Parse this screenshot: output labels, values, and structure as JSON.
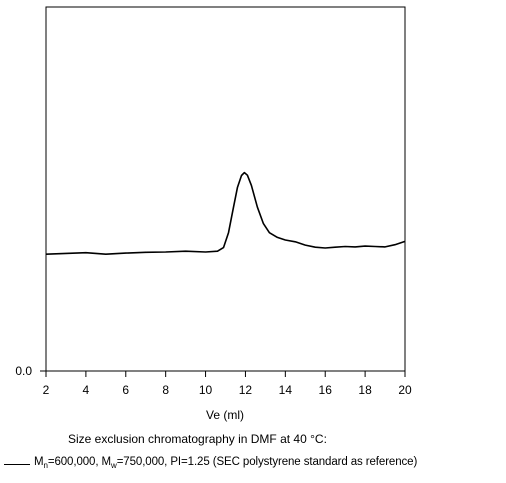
{
  "chart_data": {
    "type": "line",
    "title": "",
    "xlabel": "Ve (ml)",
    "ylabel": "",
    "xlim": [
      2,
      20
    ],
    "ylim": [
      0,
      1
    ],
    "x_ticks": [
      "2",
      "4",
      "6",
      "8",
      "10",
      "12",
      "14",
      "16",
      "18",
      "20"
    ],
    "y_ticks": [
      "0.0"
    ],
    "grid": false,
    "series": [
      {
        "color": "#000000",
        "points": [
          [
            2.0,
            0.321
          ],
          [
            3.0,
            0.323
          ],
          [
            4.0,
            0.325
          ],
          [
            5.0,
            0.321
          ],
          [
            6.0,
            0.324
          ],
          [
            7.0,
            0.326
          ],
          [
            8.0,
            0.327
          ],
          [
            9.0,
            0.329
          ],
          [
            10.0,
            0.327
          ],
          [
            10.6,
            0.329
          ],
          [
            10.9,
            0.339
          ],
          [
            11.15,
            0.38
          ],
          [
            11.4,
            0.45
          ],
          [
            11.6,
            0.505
          ],
          [
            11.8,
            0.537
          ],
          [
            11.95,
            0.545
          ],
          [
            12.1,
            0.538
          ],
          [
            12.3,
            0.51
          ],
          [
            12.6,
            0.45
          ],
          [
            12.9,
            0.405
          ],
          [
            13.2,
            0.38
          ],
          [
            13.6,
            0.367
          ],
          [
            14.0,
            0.36
          ],
          [
            14.5,
            0.355
          ],
          [
            15.0,
            0.346
          ],
          [
            15.5,
            0.34
          ],
          [
            16.0,
            0.338
          ],
          [
            16.5,
            0.34
          ],
          [
            17.0,
            0.342
          ],
          [
            17.5,
            0.341
          ],
          [
            18.0,
            0.343
          ],
          [
            18.5,
            0.342
          ],
          [
            19.0,
            0.341
          ],
          [
            19.5,
            0.347
          ],
          [
            20.0,
            0.356
          ]
        ]
      }
    ]
  },
  "caption": "Size exclusion chromatography in DMF at 40 °C:",
  "legend": {
    "m": "M",
    "n_sub": "n",
    "mn_value": "=600,000, M",
    "w_sub": "w",
    "rest": "=750,000, PI=1.25 (SEC  polystyrene standard as reference)"
  }
}
